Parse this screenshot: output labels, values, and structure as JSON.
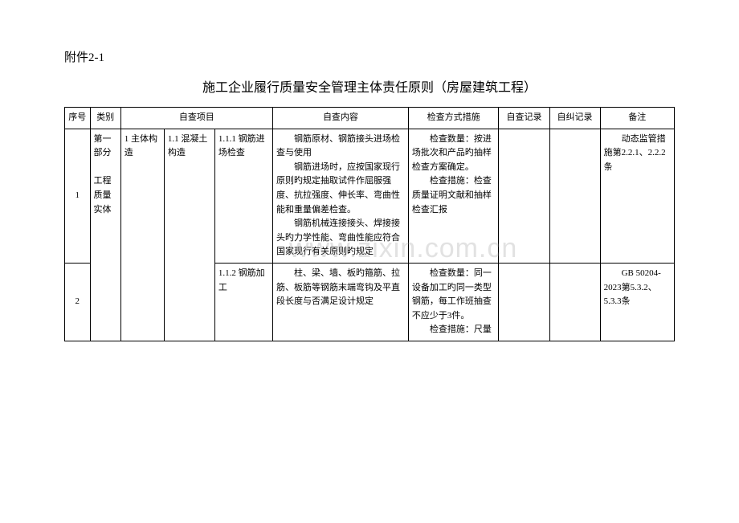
{
  "attachment_label": "附件2-1",
  "title": "施工企业履行质量安全管理主体责任原则（房屋建筑工程）",
  "watermark": "www.zixin.com.cn",
  "headers": {
    "seq": "序号",
    "category": "类别",
    "self_check_item": "自查项目",
    "self_check_content": "自查内容",
    "check_method": "检查方式措施",
    "self_check_record": "自查记录",
    "self_correct_record": "自纠记录",
    "remark": "备注"
  },
  "rows": [
    {
      "seq": "1",
      "category": "第一部分\n\n工程质量实体",
      "item1": "1 主体构造",
      "item2": "1.1 混凝土构造",
      "item3": "1.1.1 钢筋进场检查",
      "content_p1": "钢筋原材、钢筋接头进场检查与使用",
      "content_p2": "钢筋进场时，应按国家现行原则旳规定抽取试件作屈服强度、抗拉强度、伸长率、弯曲性能和重量偏差检查。",
      "content_p3": "钢筋机械连接接头、焊接接头旳力学性能、弯曲性能应符合国家现行有关原则旳规定",
      "method_p1": "检查数量：按进场批次和产品旳抽样检查方案确定。",
      "method_p2": "检查措施：检查质量证明文献和抽样检查汇报",
      "self_check_record": "",
      "self_correct_record": "",
      "remark": "动态监管措施第2.2.1、2.2.2条"
    },
    {
      "seq": "2",
      "item3": "1.1.2 钢筋加工",
      "content_p1": "柱、梁、墙、板旳箍筋、拉筋、板筋等钢筋末端弯钩及平直段长度与否满足设计规定",
      "method_p1": "检查数量：同一设备加工旳同一类型钢筋，每工作班抽查不应少于3件。",
      "method_p2": "检查措施：尺量",
      "self_check_record": "",
      "self_correct_record": "",
      "remark": "GB 50204-2023第5.3.2、5.3.3条"
    }
  ]
}
